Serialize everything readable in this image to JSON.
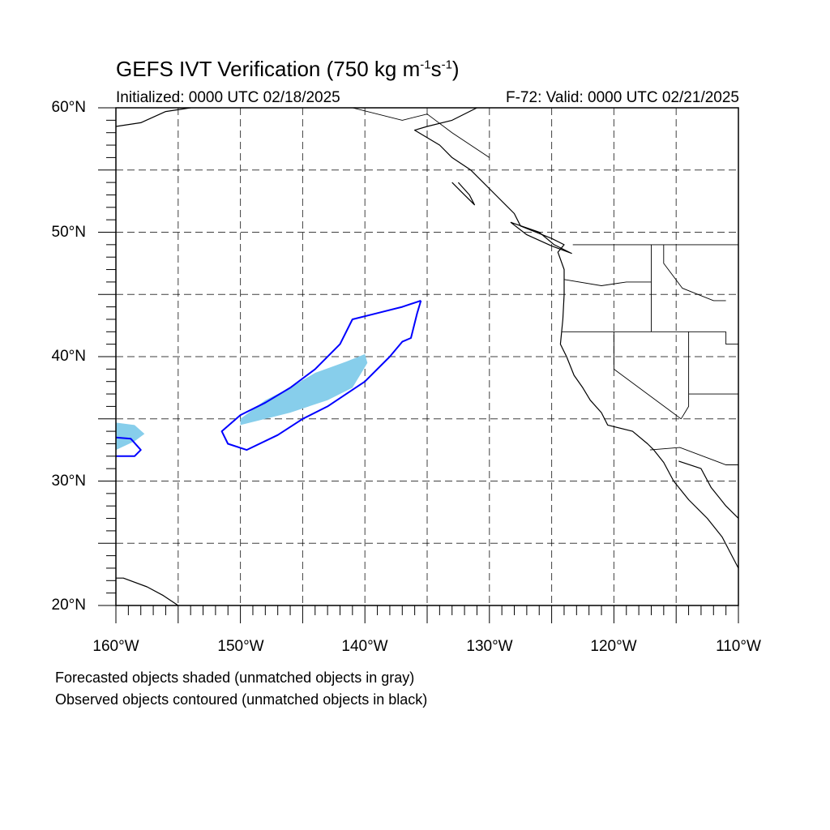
{
  "title": {
    "prefix": "GEFS IVT Verification (750 kg m",
    "sup1": "-1",
    "mid": "s",
    "sup2": "-1",
    "suffix": ")"
  },
  "initialized": "Initialized: 0000 UTC 02/18/2025",
  "valid": "F-72: Valid: 0000 UTC 02/21/2025",
  "lat_labels": [
    "60°N",
    "50°N",
    "40°N",
    "30°N",
    "20°N"
  ],
  "lon_labels": [
    "160°W",
    "150°W",
    "140°W",
    "130°W",
    "120°W",
    "110°W"
  ],
  "notes": [
    "Forecasted objects shaded (unmatched objects in gray)",
    "Observed objects contoured (unmatched objects in black)"
  ],
  "colors": {
    "forecast_fill": "#87ceeb",
    "observed_contour": "#0000ff",
    "coastline": "#000000",
    "grid": "#000000"
  },
  "map": {
    "projection": "cylindrical equidistant",
    "lon_range": [
      -160,
      -110
    ],
    "lat_range": [
      20,
      60
    ],
    "grid": "dashed every 5 degrees",
    "forecast_objects": [
      {
        "name": "forecast-object-main",
        "lonlat": [
          [
            -150,
            35
          ],
          [
            -148,
            36.5
          ],
          [
            -146,
            37.5
          ],
          [
            -144,
            38.7
          ],
          [
            -141.5,
            39.6
          ],
          [
            -140,
            40.2
          ],
          [
            -139.8,
            39.5
          ],
          [
            -141,
            37.5
          ],
          [
            -143,
            36.5
          ],
          [
            -146,
            35.5
          ],
          [
            -148,
            35
          ],
          [
            -150,
            34.5
          ]
        ]
      },
      {
        "name": "forecast-object-west",
        "lonlat": [
          [
            -160,
            34.7
          ],
          [
            -158.5,
            34.5
          ],
          [
            -157.7,
            33.8
          ],
          [
            -158.5,
            33.2
          ],
          [
            -160,
            32.5
          ]
        ]
      }
    ],
    "observed_objects": [
      {
        "name": "observed-contour-main",
        "lonlat": [
          [
            -135.5,
            44.5
          ],
          [
            -135.8,
            43.5
          ],
          [
            -136.3,
            41.5
          ],
          [
            -137,
            41.2
          ],
          [
            -138,
            40
          ],
          [
            -140,
            38
          ],
          [
            -143,
            36
          ],
          [
            -145,
            35
          ],
          [
            -147,
            33.7
          ],
          [
            -149.5,
            32.5
          ],
          [
            -151,
            33
          ],
          [
            -151.5,
            34
          ],
          [
            -150,
            35.3
          ],
          [
            -148,
            36.3
          ],
          [
            -146,
            37.5
          ],
          [
            -144,
            39
          ],
          [
            -142,
            41
          ],
          [
            -141,
            43
          ],
          [
            -139,
            43.5
          ],
          [
            -137,
            44
          ],
          [
            -135.5,
            44.5
          ]
        ]
      },
      {
        "name": "observed-contour-west",
        "lonlat": [
          [
            -160,
            33.5
          ],
          [
            -158.8,
            33.4
          ],
          [
            -158,
            32.5
          ],
          [
            -158.5,
            32
          ],
          [
            -160,
            32
          ]
        ]
      }
    ],
    "coastlines": [
      {
        "name": "north-america-coast",
        "lonlat": [
          [
            -131,
            60
          ],
          [
            -133,
            59
          ],
          [
            -135,
            58.5
          ],
          [
            -136,
            58.2
          ],
          [
            -134,
            57
          ],
          [
            -133,
            56
          ],
          [
            -131.5,
            55
          ],
          [
            -130.5,
            54
          ],
          [
            -129.5,
            53
          ],
          [
            -128,
            51.5
          ],
          [
            -127.5,
            50.5
          ],
          [
            -125,
            49.5
          ],
          [
            -124,
            49
          ],
          [
            -124.5,
            48.4
          ],
          [
            -124,
            47
          ],
          [
            -124,
            46.2
          ],
          [
            -124,
            45
          ],
          [
            -124.1,
            43
          ],
          [
            -124.3,
            41
          ],
          [
            -123.8,
            40
          ],
          [
            -123.2,
            38.5
          ],
          [
            -122.5,
            37.5
          ],
          [
            -121.9,
            36.5
          ],
          [
            -121,
            35.5
          ],
          [
            -120.5,
            34.5
          ],
          [
            -118.5,
            34
          ],
          [
            -117.3,
            33
          ],
          [
            -116.8,
            32.5
          ],
          [
            -116,
            31.5
          ],
          [
            -115.2,
            30
          ],
          [
            -114,
            28.5
          ],
          [
            -112.5,
            27
          ],
          [
            -111.3,
            25.5
          ],
          [
            -110,
            23
          ]
        ]
      },
      {
        "name": "gulf-of-california-east-coast",
        "lonlat": [
          [
            -114.8,
            31.6
          ],
          [
            -113,
            31
          ],
          [
            -112.2,
            29.5
          ],
          [
            -111,
            28
          ],
          [
            -110,
            27
          ]
        ]
      },
      {
        "name": "alaska-coast",
        "lonlat": [
          [
            -160,
            58.5
          ],
          [
            -158,
            58.8
          ],
          [
            -156,
            59.7
          ],
          [
            -154,
            60
          ]
        ]
      },
      {
        "name": "hawaii-islands",
        "lonlat": [
          [
            -160,
            22.2
          ],
          [
            -159.4,
            22.2
          ],
          [
            -157.5,
            21.5
          ],
          [
            -156.2,
            20.8
          ],
          [
            -155,
            20
          ]
        ]
      },
      {
        "name": "vancouver-island",
        "lonlat": [
          [
            -128.3,
            50.8
          ],
          [
            -126,
            50
          ],
          [
            -124.8,
            49
          ],
          [
            -123.4,
            48.3
          ],
          [
            -125,
            48.9
          ],
          [
            -127,
            49.8
          ],
          [
            -128.3,
            50.8
          ]
        ]
      },
      {
        "name": "haida-gwaii",
        "lonlat": [
          [
            -133,
            54
          ],
          [
            -132.2,
            53.2
          ],
          [
            -131.2,
            52.2
          ],
          [
            -131.6,
            53
          ],
          [
            -132.5,
            54
          ]
        ]
      }
    ],
    "borders": [
      {
        "name": "us-canada-border",
        "lonlat": [
          [
            -123.3,
            49
          ],
          [
            -110,
            49
          ]
        ]
      },
      {
        "name": "canada-alaska-border",
        "lonlat": [
          [
            -141,
            60
          ],
          [
            -137,
            59
          ],
          [
            -135,
            59.5
          ],
          [
            -133,
            58
          ],
          [
            -130,
            56
          ]
        ]
      },
      {
        "name": "or-wa-border",
        "lonlat": [
          [
            -124,
            46.2
          ],
          [
            -121,
            45.7
          ],
          [
            -119,
            46
          ],
          [
            -117,
            46
          ]
        ]
      },
      {
        "name": "ca-or-border",
        "lonlat": [
          [
            -124.2,
            42
          ],
          [
            -117,
            42
          ],
          [
            -111,
            42
          ]
        ]
      },
      {
        "name": "ca-nv-border",
        "lonlat": [
          [
            -120,
            42
          ],
          [
            -120,
            39
          ],
          [
            -114.6,
            35
          ]
        ]
      },
      {
        "name": "wa-id-border",
        "lonlat": [
          [
            -117,
            49
          ],
          [
            -117,
            42
          ]
        ]
      },
      {
        "name": "id-mt-border",
        "lonlat": [
          [
            -116,
            49
          ],
          [
            -116,
            47.5
          ],
          [
            -114.5,
            45.5
          ],
          [
            -112,
            44.5
          ],
          [
            -111,
            44.5
          ]
        ]
      },
      {
        "name": "az-nv-border",
        "lonlat": [
          [
            -114,
            42
          ],
          [
            -114,
            36
          ],
          [
            -114.6,
            35
          ]
        ]
      },
      {
        "name": "us-mexico-border",
        "lonlat": [
          [
            -117.1,
            32.5
          ],
          [
            -114.7,
            32.7
          ],
          [
            -111,
            31.3
          ],
          [
            -110,
            31.3
          ]
        ]
      },
      {
        "name": "ut-border",
        "lonlat": [
          [
            -111,
            42
          ],
          [
            -111,
            41
          ],
          [
            -109,
            41
          ]
        ]
      },
      {
        "name": "az-ut-border",
        "lonlat": [
          [
            -114,
            37
          ],
          [
            -110,
            37
          ]
        ]
      }
    ]
  }
}
